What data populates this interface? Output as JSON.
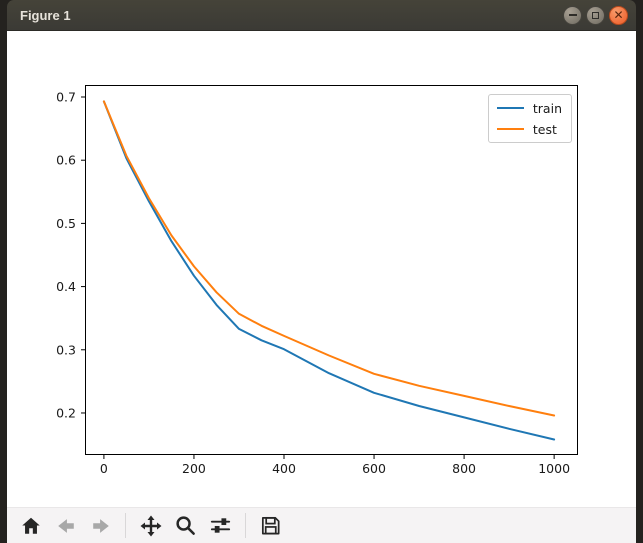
{
  "window": {
    "title": "Figure 1",
    "buttons": [
      {
        "name": "minimize"
      },
      {
        "name": "maximize"
      },
      {
        "name": "close"
      }
    ]
  },
  "chart_data": {
    "type": "line",
    "x": [
      0,
      50,
      100,
      150,
      200,
      250,
      300,
      350,
      400,
      500,
      600,
      700,
      800,
      900,
      1000
    ],
    "series": [
      {
        "name": "train",
        "color": "#1f77b4",
        "values": [
          0.693,
          0.603,
          0.535,
          0.472,
          0.417,
          0.371,
          0.333,
          0.315,
          0.301,
          0.263,
          0.232,
          0.211,
          0.193,
          0.175,
          0.158
        ]
      },
      {
        "name": "test",
        "color": "#ff7f0e",
        "values": [
          0.693,
          0.607,
          0.54,
          0.481,
          0.432,
          0.391,
          0.357,
          0.338,
          0.322,
          0.291,
          0.262,
          0.243,
          0.227,
          0.211,
          0.196
        ]
      }
    ],
    "title": "",
    "xlabel": "",
    "ylabel": "",
    "xticks": [
      0,
      200,
      400,
      600,
      800,
      1000
    ],
    "yticks": [
      0.2,
      0.3,
      0.4,
      0.5,
      0.6,
      0.7
    ],
    "xlim": [
      -42,
      1053
    ],
    "ylim": [
      0.1335,
      0.719
    ],
    "grid": false,
    "legend": {
      "position": "upper right",
      "entries": [
        "train",
        "test"
      ]
    }
  },
  "toolbar": {
    "items": [
      {
        "name": "home",
        "enabled": true
      },
      {
        "name": "back",
        "enabled": false
      },
      {
        "name": "forward",
        "enabled": false
      },
      {
        "name": "pan",
        "enabled": true
      },
      {
        "name": "zoom",
        "enabled": true
      },
      {
        "name": "subplots",
        "enabled": true
      },
      {
        "name": "save",
        "enabled": true
      }
    ]
  },
  "colors": {
    "train": "#1f77b4",
    "test": "#ff7f0e",
    "close_button": "#ee5a25",
    "titlebar": "#3e3c37",
    "toolbar_bg": "#f5f3f4",
    "canvas_bg": "#ffffff"
  }
}
